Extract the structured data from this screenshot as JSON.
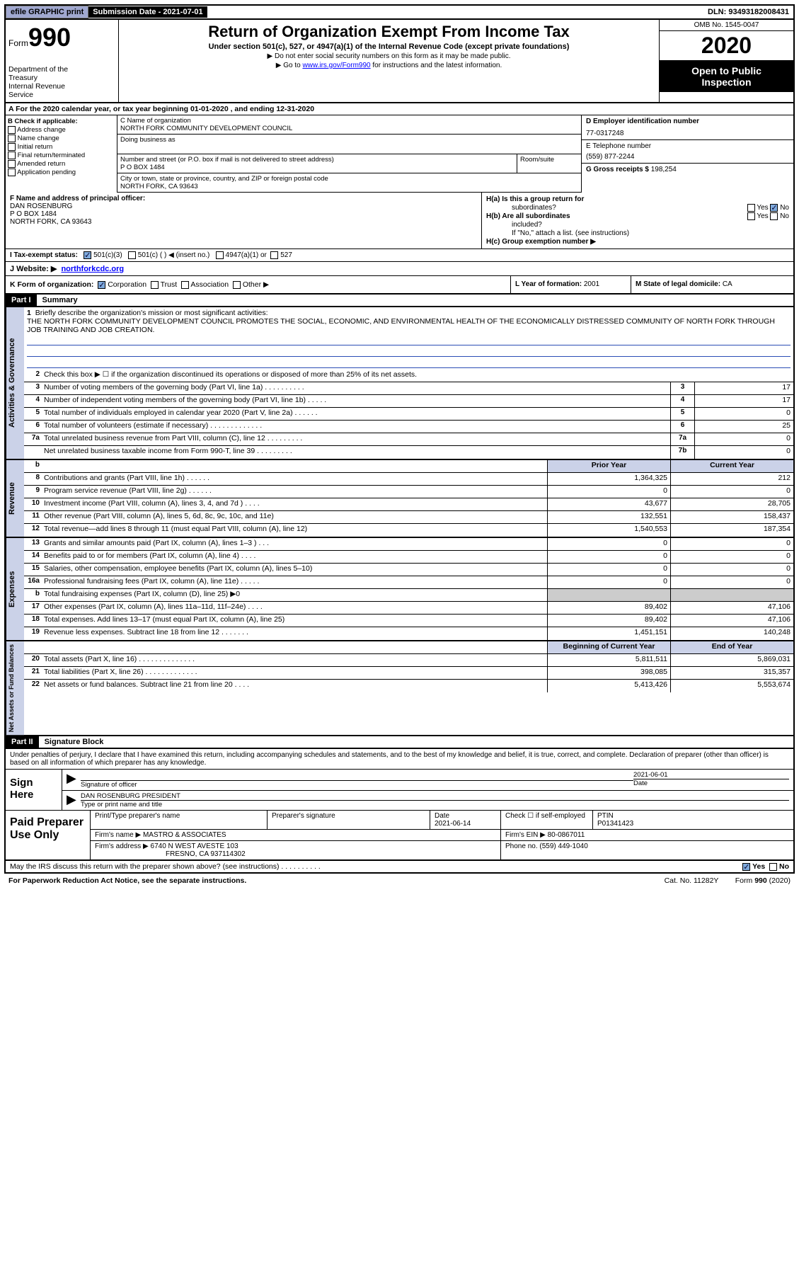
{
  "colors": {
    "section_bg": "#cbd2e8",
    "link": "#0000ff",
    "black": "#000000"
  },
  "topbar": {
    "efile": "efile GRAPHIC print",
    "submission_label": "Submission Date - 2021-07-01",
    "dln": "DLN: 93493182008431"
  },
  "header": {
    "form_word": "Form",
    "form_number": "990",
    "dept1": "Department of the",
    "dept2": "Treasury",
    "dept3": "Internal Revenue",
    "dept4": "Service",
    "title": "Return of Organization Exempt From Income Tax",
    "subtitle": "Under section 501(c), 527, or 4947(a)(1) of the Internal Revenue Code (except private foundations)",
    "note1": "▶ Do not enter social security numbers on this form as it may be made public.",
    "note2_pre": "▶ Go to ",
    "note2_link": "www.irs.gov/Form990",
    "note2_post": " for instructions and the latest information.",
    "omb": "OMB No. 1545-0047",
    "year": "2020",
    "open1": "Open to Public",
    "open2": "Inspection"
  },
  "period": "A For the 2020 calendar year, or tax year beginning 01-01-2020   , and ending 12-31-2020",
  "boxB": {
    "header": "B Check if applicable:",
    "items": [
      "Address change",
      "Name change",
      "Initial return",
      "Final return/terminated",
      "Amended return",
      "Application pending"
    ]
  },
  "boxC": {
    "label_name": "C Name of organization",
    "org_name": "NORTH FORK COMMUNITY DEVELOPMENT COUNCIL",
    "dba_label": "Doing business as",
    "addr_label": "Number and street (or P.O. box if mail is not delivered to street address)",
    "room_label": "Room/suite",
    "addr": "P O BOX 1484",
    "city_label": "City or town, state or province, country, and ZIP or foreign postal code",
    "city": "NORTH FORK, CA  93643"
  },
  "boxD": {
    "label": "D Employer identification number",
    "value": "77-0317248"
  },
  "boxE": {
    "label": "E Telephone number",
    "value": "(559) 877-2244"
  },
  "boxG": {
    "label": "G Gross receipts $ ",
    "value": "198,254"
  },
  "boxF": {
    "label": "F  Name and address of principal officer:",
    "name": "DAN ROSENBURG",
    "addr1": "P O BOX 1484",
    "addr2": "NORTH FORK, CA  93643"
  },
  "boxH": {
    "a_label": "H(a)  Is this a group return for",
    "a_label2": "subordinates?",
    "b_label": "H(b)  Are all subordinates",
    "b_label2": "included?",
    "note": "If \"No,\" attach a list. (see instructions)",
    "c_label": "H(c)  Group exemption number ▶",
    "yes": "Yes",
    "no": "No"
  },
  "taxStatus": {
    "i_label": "I  Tax-exempt status:",
    "opts": [
      "501(c)(3)",
      "501(c) (  ) ◀ (insert no.)",
      "4947(a)(1) or",
      "527"
    ]
  },
  "website": {
    "label": "J  Website: ▶",
    "value": "northforkcdc.org"
  },
  "boxK": {
    "label": "K Form of organization:",
    "opts": [
      "Corporation",
      "Trust",
      "Association",
      "Other ▶"
    ]
  },
  "boxL": {
    "label": "L Year of formation: ",
    "value": "2001"
  },
  "boxM": {
    "label": "M State of legal domicile: ",
    "value": "CA"
  },
  "part1": {
    "num": "Part I",
    "title": "Summary"
  },
  "mission": {
    "num": "1",
    "label": "Briefly describe the organization's mission or most significant activities:",
    "text": "THE NORTH FORK COMMUNITY DEVELOPMENT COUNCIL PROMOTES THE SOCIAL, ECONOMIC, AND ENVIRONMENTAL HEALTH OF THE ECONOMICALLY DISTRESSED COMMUNITY OF NORTH FORK THROUGH JOB TRAINING AND JOB CREATION."
  },
  "gov_rows": [
    {
      "n": "2",
      "d": "Check this box ▶ ☐  if the organization discontinued its operations or disposed of more than 25% of its net assets."
    },
    {
      "n": "3",
      "d": "Number of voting members of the governing body (Part VI, line 1a)  .   .   .   .   .   .   .   .   .   .",
      "cn": "3",
      "v": "17"
    },
    {
      "n": "4",
      "d": "Number of independent voting members of the governing body (Part VI, line 1b)  .   .   .   .   .",
      "cn": "4",
      "v": "17"
    },
    {
      "n": "5",
      "d": "Total number of individuals employed in calendar year 2020 (Part V, line 2a)  .   .   .   .   .   .",
      "cn": "5",
      "v": "0"
    },
    {
      "n": "6",
      "d": "Total number of volunteers (estimate if necessary)   .   .   .   .   .   .   .   .   .   .   .   .   .",
      "cn": "6",
      "v": "25"
    },
    {
      "n": "7a",
      "d": "Total unrelated business revenue from Part VIII, column (C), line 12  .   .   .   .   .   .   .   .   .",
      "cn": "7a",
      "v": "0"
    },
    {
      "n": "",
      "d": "Net unrelated business taxable income from Form 990-T, line 39   .   .   .   .   .   .   .   .   .",
      "cn": "7b",
      "v": "0"
    }
  ],
  "gov_side": "Activities & Governance",
  "rev_side": "Revenue",
  "exp_side": "Expenses",
  "net_side": "Net Assets or Fund Balances",
  "col_headers": {
    "prior": "Prior Year",
    "current": "Current Year",
    "begin": "Beginning of Current Year",
    "end": "End of Year"
  },
  "rev_rows": [
    {
      "n": "8",
      "d": "Contributions and grants (Part VIII, line 1h)   .   .   .   .   .   .",
      "py": "1,364,325",
      "cy": "212"
    },
    {
      "n": "9",
      "d": "Program service revenue (Part VIII, line 2g)   .   .   .   .   .   .",
      "py": "0",
      "cy": "0"
    },
    {
      "n": "10",
      "d": "Investment income (Part VIII, column (A), lines 3, 4, and 7d )   .   .   .   .",
      "py": "43,677",
      "cy": "28,705"
    },
    {
      "n": "11",
      "d": "Other revenue (Part VIII, column (A), lines 5, 6d, 8c, 9c, 10c, and 11e)",
      "py": "132,551",
      "cy": "158,437"
    },
    {
      "n": "12",
      "d": "Total revenue—add lines 8 through 11 (must equal Part VIII, column (A), line 12)",
      "py": "1,540,553",
      "cy": "187,354"
    }
  ],
  "exp_rows": [
    {
      "n": "13",
      "d": "Grants and similar amounts paid (Part IX, column (A), lines 1–3 )  .   .   .",
      "py": "0",
      "cy": "0"
    },
    {
      "n": "14",
      "d": "Benefits paid to or for members (Part IX, column (A), line 4)  .   .   .   .",
      "py": "0",
      "cy": "0"
    },
    {
      "n": "15",
      "d": "Salaries, other compensation, employee benefits (Part IX, column (A), lines 5–10)",
      "py": "0",
      "cy": "0"
    },
    {
      "n": "16a",
      "d": "Professional fundraising fees (Part IX, column (A), line 11e)  .   .   .   .   .",
      "py": "0",
      "cy": "0"
    },
    {
      "n": "b",
      "d": "Total fundraising expenses (Part IX, column (D), line 25) ▶0",
      "py": "",
      "cy": "",
      "grey": true
    },
    {
      "n": "17",
      "d": "Other expenses (Part IX, column (A), lines 11a–11d, 11f–24e)  .   .   .   .",
      "py": "89,402",
      "cy": "47,106"
    },
    {
      "n": "18",
      "d": "Total expenses. Add lines 13–17 (must equal Part IX, column (A), line 25)",
      "py": "89,402",
      "cy": "47,106"
    },
    {
      "n": "19",
      "d": "Revenue less expenses. Subtract line 18 from line 12  .   .   .   .   .   .   .",
      "py": "1,451,151",
      "cy": "140,248"
    }
  ],
  "net_rows": [
    {
      "n": "20",
      "d": "Total assets (Part X, line 16)  .   .   .   .   .   .   .   .   .   .   .   .   .   .",
      "py": "5,811,511",
      "cy": "5,869,031"
    },
    {
      "n": "21",
      "d": "Total liabilities (Part X, line 26)  .   .   .   .   .   .   .   .   .   .   .   .   .",
      "py": "398,085",
      "cy": "315,357"
    },
    {
      "n": "22",
      "d": "Net assets or fund balances. Subtract line 21 from line 20  .   .   .   .",
      "py": "5,413,426",
      "cy": "5,553,674"
    }
  ],
  "part2": {
    "num": "Part II",
    "title": "Signature Block"
  },
  "sig": {
    "decl": "Under penalties of perjury, I declare that I have examined this return, including accompanying schedules and statements, and to the best of my knowledge and belief, it is true, correct, and complete. Declaration of preparer (other than officer) is based on all information of which preparer has any knowledge.",
    "sign_here": "Sign Here",
    "sig_label": "Signature of officer",
    "date_label": "Date",
    "date_val": "2021-06-01",
    "name": "DAN ROSENBURG  PRESIDENT",
    "name_label": "Type or print name and title"
  },
  "paid": {
    "title": "Paid Preparer Use Only",
    "h1": "Print/Type preparer's name",
    "h2": "Preparer's signature",
    "h3": "Date",
    "date": "2021-06-14",
    "h4": "Check ☐ if self-employed",
    "h5": "PTIN",
    "ptin": "P01341423",
    "firm_label": "Firm's name   ▶",
    "firm": "MASTRO & ASSOCIATES",
    "ein_label": "Firm's EIN ▶",
    "ein": "80-0867011",
    "addr_label": "Firm's address ▶",
    "addr1": "6740 N WEST AVESTE 103",
    "addr2": "FRESNO, CA  937114302",
    "phone_label": "Phone no.",
    "phone": "(559) 449-1040"
  },
  "discuss": {
    "text": "May the IRS discuss this return with the preparer shown above? (see instructions)   .   .   .   .   .   .   .   .   .   .",
    "yes": "Yes",
    "no": "No"
  },
  "footer": {
    "left": "For Paperwork Reduction Act Notice, see the separate instructions.",
    "mid": "Cat. No. 11282Y",
    "right": "Form 990 (2020)"
  }
}
